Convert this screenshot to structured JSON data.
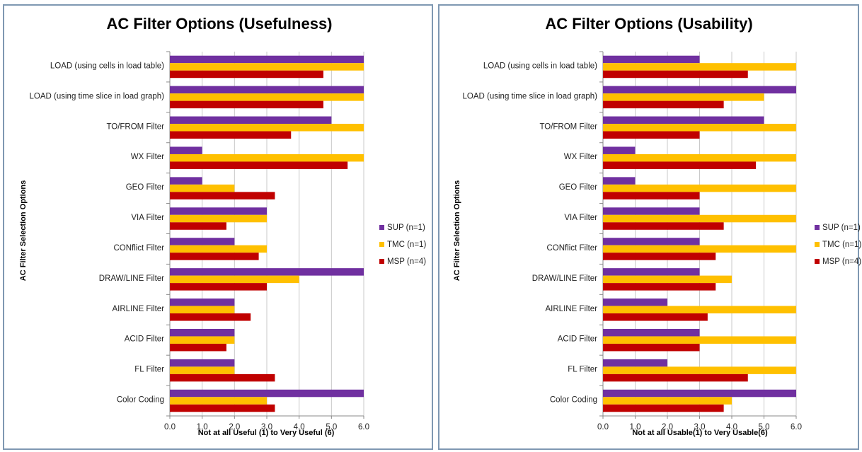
{
  "chart_data": [
    {
      "type": "bar",
      "orientation": "horizontal",
      "title": "AC Filter Options (Usefulness)",
      "xlabel": "Not at all Useful (1) to Very Useful (6)",
      "ylabel": "AC Filter Selection Options",
      "xlim": [
        0,
        6
      ],
      "xticks": [
        "0.0",
        "1.0",
        "2.0",
        "3.0",
        "4.0",
        "5.0",
        "6.0"
      ],
      "grid": true,
      "legend_position": "right",
      "categories": [
        "LOAD (using cells in load table)",
        "LOAD (using time slice in load graph)",
        "TO/FROM Filter",
        "WX Filter",
        "GEO Filter",
        "VIA Filter",
        "CONflict Filter",
        "DRAW/LINE Filter",
        "AIRLINE Filter",
        "ACID Filter",
        "FL Filter",
        "Color Coding"
      ],
      "series": [
        {
          "name": "SUP (n=1)",
          "color": "#7030a0",
          "values": [
            6,
            6,
            5,
            1,
            1,
            3,
            2,
            6,
            2,
            2,
            2,
            6
          ]
        },
        {
          "name": "TMC (n=1)",
          "color": "#ffc000",
          "values": [
            6,
            6,
            6,
            6,
            2,
            3,
            3,
            4,
            2,
            2,
            2,
            3
          ]
        },
        {
          "name": "MSP (n=4)",
          "color": "#c00000",
          "values": [
            4.75,
            4.75,
            3.75,
            5.5,
            3.25,
            1.75,
            2.75,
            3,
            2.5,
            1.75,
            3.25,
            3.25
          ]
        }
      ]
    },
    {
      "type": "bar",
      "orientation": "horizontal",
      "title": "AC Filter Options (Usability)",
      "xlabel": "Not at all Usable(1) to Very Usable(6)",
      "ylabel": "AC Filter Selection Options",
      "xlim": [
        0,
        6
      ],
      "xticks": [
        "0.0",
        "1.0",
        "2.0",
        "3.0",
        "4.0",
        "5.0",
        "6.0"
      ],
      "grid": true,
      "legend_position": "right",
      "categories": [
        "LOAD (using cells in load table)",
        "LOAD (using time slice in load graph)",
        "TO/FROM Filter",
        "WX Filter",
        "GEO Filter",
        "VIA Filter",
        "CONflict Filter",
        "DRAW/LINE Filter",
        "AIRLINE Filter",
        "ACID Filter",
        "FL Filter",
        "Color Coding"
      ],
      "series": [
        {
          "name": "SUP (n=1)",
          "color": "#7030a0",
          "values": [
            3,
            6,
            5,
            1,
            1,
            3,
            3,
            3,
            2,
            3,
            2,
            6
          ]
        },
        {
          "name": "TMC (n=1)",
          "color": "#ffc000",
          "values": [
            6,
            5,
            6,
            6,
            6,
            6,
            6,
            4,
            6,
            6,
            6,
            4
          ]
        },
        {
          "name": "MSP (n=4)",
          "color": "#c00000",
          "values": [
            4.5,
            3.75,
            3,
            4.75,
            3,
            3.75,
            3.5,
            3.5,
            3.25,
            3,
            4.5,
            3.75
          ]
        }
      ]
    }
  ]
}
